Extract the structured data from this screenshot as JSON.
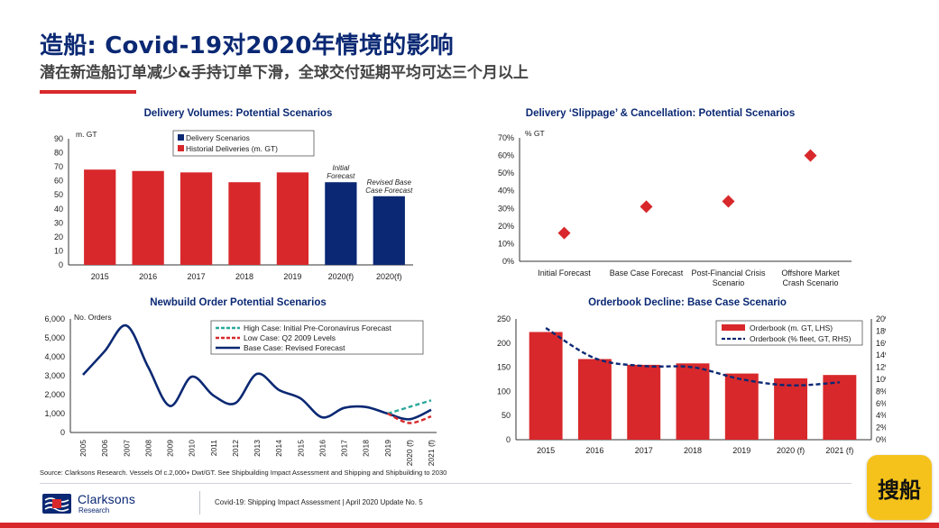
{
  "header": {
    "title": "造船: Covid-19对2020年情境的影响",
    "subtitle": "潜在新造船订单减少&手持订单下滑，全球交付延期平均可达三个月以上"
  },
  "colors": {
    "navy": "#0a2873",
    "red": "#d8282b",
    "teal": "#2aa89a"
  },
  "chart_data": [
    {
      "type": "bar",
      "title": "Delivery Volumes: Potential Scenarios",
      "ylabel": "m. GT",
      "ylim": [
        0,
        90
      ],
      "yticks": [
        0,
        10,
        20,
        30,
        40,
        50,
        60,
        70,
        80,
        90
      ],
      "categories": [
        "2015",
        "2016",
        "2017",
        "2018",
        "2019",
        "2020(f)",
        "2020(f)"
      ],
      "values": [
        68,
        67,
        66,
        59,
        66,
        59,
        49
      ],
      "series_of_bar": [
        "Historial Deliveries (m. GT)",
        "Historial Deliveries (m. GT)",
        "Historial Deliveries (m. GT)",
        "Historial Deliveries (m. GT)",
        "Historial Deliveries (m. GT)",
        "Delivery Scenarios",
        "Delivery Scenarios"
      ],
      "legend": [
        "Delivery Scenarios",
        "Historial Deliveries (m. GT)"
      ],
      "annotations": [
        {
          "category_index": 5,
          "lines": [
            "Initial",
            "Forecast"
          ]
        },
        {
          "category_index": 6,
          "lines": [
            "Revised Base",
            "Case Forecast"
          ]
        }
      ],
      "legend_position": "top"
    },
    {
      "type": "scatter",
      "title": "Delivery ‘Slippage’ & Cancellation: Potential Scenarios",
      "ylabel": "% GT",
      "ylim": [
        0,
        70
      ],
      "yticks": [
        "0%",
        "10%",
        "20%",
        "30%",
        "40%",
        "50%",
        "60%",
        "70%"
      ],
      "categories": [
        [
          "Initial Forecast"
        ],
        [
          "Base Case Forecast"
        ],
        [
          "Post-Financial Crisis",
          "Scenario"
        ],
        [
          "Offshore Market",
          "Crash Scenario"
        ]
      ],
      "values": [
        16,
        31,
        34,
        60
      ]
    },
    {
      "type": "line",
      "title": "Newbuild Order Potential Scenarios",
      "ylabel": "No. Orders",
      "ylim": [
        0,
        6000
      ],
      "yticks": [
        "0",
        "1,000",
        "2,000",
        "3,000",
        "4,000",
        "5,000",
        "6,000"
      ],
      "x": [
        "2005",
        "2006",
        "2007",
        "2008",
        "2009",
        "2010",
        "2011",
        "2012",
        "2013",
        "2014",
        "2015",
        "2016",
        "2017",
        "2018",
        "2019",
        "2020 (f)",
        "2021 (f)"
      ],
      "series": [
        {
          "name": "Base Case: Revised Forecast",
          "style": "solid",
          "points": [
            [
              0,
              3050
            ],
            [
              1,
              4300
            ],
            [
              2,
              5650
            ],
            [
              3,
              3450
            ],
            [
              4,
              1400
            ],
            [
              5,
              2950
            ],
            [
              6,
              1950
            ],
            [
              7,
              1550
            ],
            [
              8,
              3100
            ],
            [
              9,
              2250
            ],
            [
              10,
              1800
            ],
            [
              11,
              800
            ],
            [
              12,
              1300
            ],
            [
              13,
              1350
            ],
            [
              14,
              1000
            ],
            [
              15,
              700
            ],
            [
              16,
              1200
            ]
          ]
        },
        {
          "name": "High Case: Initial Pre-Coronavirus Forecast",
          "style": "dashed",
          "points": [
            [
              14,
              1000
            ],
            [
              15,
              1350
            ],
            [
              16,
              1700
            ]
          ]
        },
        {
          "name": "Low Case: Q2 2009 Levels",
          "style": "dashed",
          "points": [
            [
              14,
              1000
            ],
            [
              15,
              500
            ],
            [
              16,
              850
            ]
          ]
        }
      ]
    },
    {
      "type": "bar",
      "title": "Orderbook Decline: Base Case Scenario",
      "ylim": [
        0,
        250
      ],
      "yticks": [
        0,
        50,
        100,
        150,
        200,
        250
      ],
      "y2lim": [
        0,
        20
      ],
      "y2ticks": [
        "0%",
        "2%",
        "4%",
        "6%",
        "8%",
        "10%",
        "12%",
        "14%",
        "16%",
        "18%",
        "20%"
      ],
      "categories": [
        "2015",
        "2016",
        "2017",
        "2018",
        "2019",
        "2020 (f)",
        "2021 (f)"
      ],
      "series": [
        {
          "name": "Orderbook (m. GT, LHS)",
          "type": "bar",
          "axis": "left",
          "values": [
            223,
            167,
            155,
            158,
            137,
            127,
            134
          ]
        },
        {
          "name": "Orderbook (% fleet, GT, RHS)",
          "type": "line",
          "axis": "right",
          "values": [
            18.5,
            13.5,
            12.2,
            12.0,
            10.0,
            9.0,
            9.5
          ]
        }
      ]
    }
  ],
  "footer": {
    "source": "Source: Clarksons Research. Vessels Of c.2,000+ Dwt/GT. See Shipbuilding Impact Assessment and Shipping and Shipbuilding to 2030",
    "logo_name": "Clarksons",
    "logo_sub": "Research",
    "report": "Covid-19: Shipping Impact Assessment | April 2020 Update No. 5"
  },
  "badge": {
    "label": "搜船"
  }
}
